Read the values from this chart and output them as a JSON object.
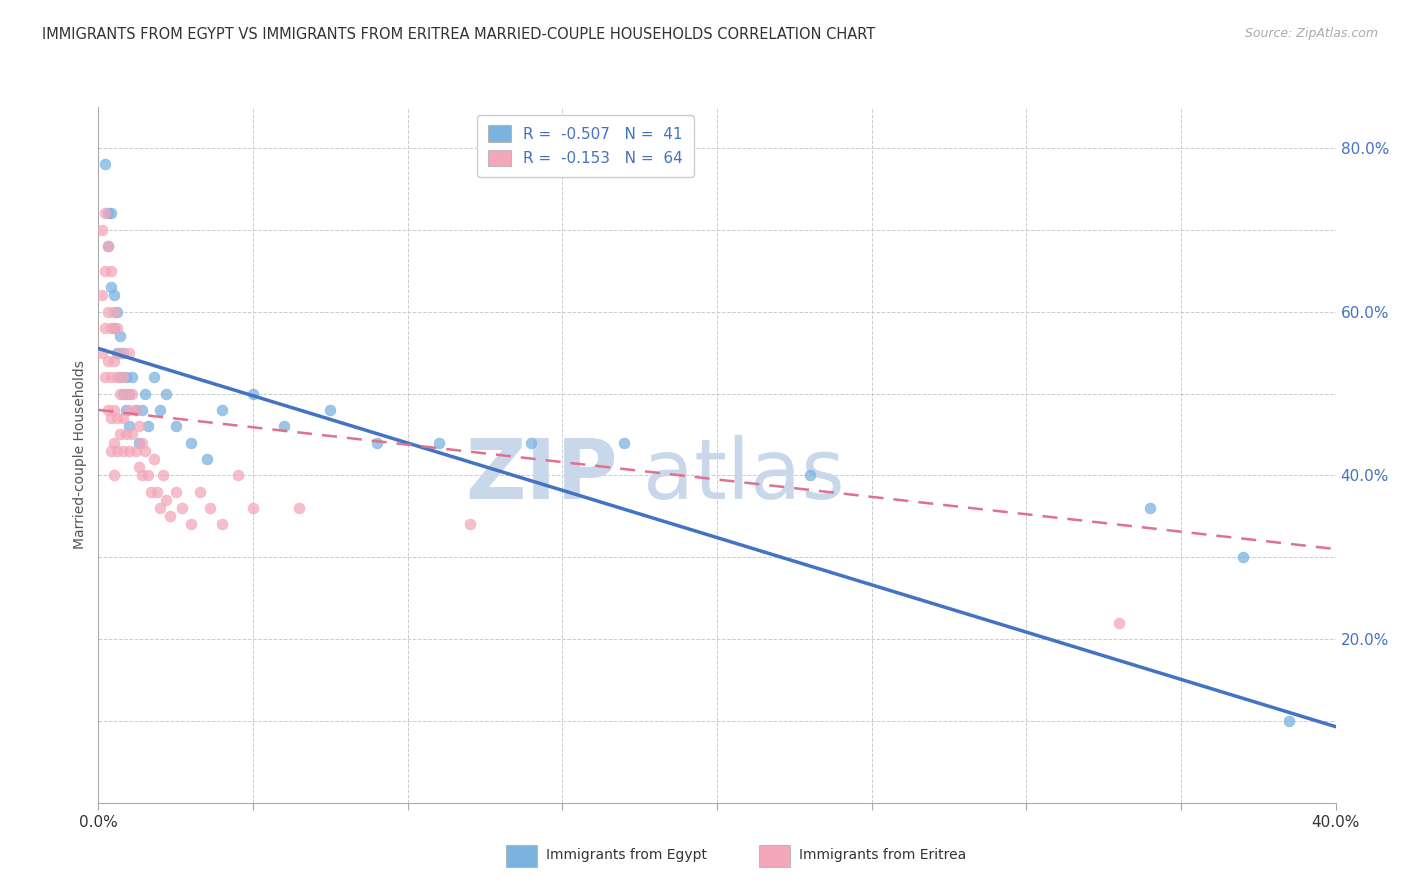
{
  "title": "IMMIGRANTS FROM EGYPT VS IMMIGRANTS FROM ERITREA MARRIED-COUPLE HOUSEHOLDS CORRELATION CHART",
  "source": "Source: ZipAtlas.com",
  "ylabel": "Married-couple Households",
  "xlim": [
    0.0,
    0.4
  ],
  "ylim": [
    0.0,
    0.85
  ],
  "xticks": [
    0.0,
    0.05,
    0.1,
    0.15,
    0.2,
    0.25,
    0.3,
    0.35,
    0.4
  ],
  "xticklabels": [
    "0.0%",
    "",
    "",
    "",
    "",
    "",
    "",
    "",
    "40.0%"
  ],
  "yticks": [
    0.0,
    0.1,
    0.2,
    0.3,
    0.4,
    0.5,
    0.6,
    0.7,
    0.8
  ],
  "yticklabels": [
    "",
    "",
    "20.0%",
    "",
    "40.0%",
    "",
    "60.0%",
    "",
    "80.0%"
  ],
  "egypt_color": "#7ab3e0",
  "eritrea_color": "#f4a7b9",
  "egypt_label": "Immigrants from Egypt",
  "eritrea_label": "Immigrants from Eritrea",
  "egypt_R": -0.507,
  "egypt_N": 41,
  "eritrea_R": -0.153,
  "eritrea_N": 64,
  "trend_line_color_egypt": "#4472c4",
  "trend_line_color_eritrea": "#e07090",
  "egypt_trend_x0": 0.0,
  "egypt_trend_y0": 0.555,
  "egypt_trend_x1": 0.4,
  "egypt_trend_y1": 0.093,
  "eritrea_trend_x0": 0.0,
  "eritrea_trend_y0": 0.48,
  "eritrea_trend_x1": 0.4,
  "eritrea_trend_y1": 0.31,
  "watermark": "ZIPatlas",
  "watermark_color": "#c8d8ea",
  "egypt_x": [
    0.002,
    0.003,
    0.003,
    0.004,
    0.004,
    0.005,
    0.005,
    0.006,
    0.006,
    0.007,
    0.007,
    0.008,
    0.008,
    0.009,
    0.009,
    0.01,
    0.01,
    0.011,
    0.012,
    0.013,
    0.014,
    0.015,
    0.016,
    0.018,
    0.02,
    0.022,
    0.025,
    0.03,
    0.035,
    0.04,
    0.05,
    0.06,
    0.075,
    0.09,
    0.11,
    0.14,
    0.17,
    0.23,
    0.34,
    0.37,
    0.385
  ],
  "egypt_y": [
    0.78,
    0.72,
    0.68,
    0.63,
    0.72,
    0.58,
    0.62,
    0.55,
    0.6,
    0.52,
    0.57,
    0.5,
    0.55,
    0.48,
    0.52,
    0.5,
    0.46,
    0.52,
    0.48,
    0.44,
    0.48,
    0.5,
    0.46,
    0.52,
    0.48,
    0.5,
    0.46,
    0.44,
    0.42,
    0.48,
    0.5,
    0.46,
    0.48,
    0.44,
    0.44,
    0.44,
    0.44,
    0.4,
    0.36,
    0.3,
    0.1
  ],
  "eritrea_x": [
    0.001,
    0.001,
    0.001,
    0.002,
    0.002,
    0.002,
    0.002,
    0.003,
    0.003,
    0.003,
    0.003,
    0.004,
    0.004,
    0.004,
    0.004,
    0.004,
    0.005,
    0.005,
    0.005,
    0.005,
    0.005,
    0.006,
    0.006,
    0.006,
    0.006,
    0.007,
    0.007,
    0.007,
    0.008,
    0.008,
    0.008,
    0.009,
    0.009,
    0.01,
    0.01,
    0.01,
    0.011,
    0.011,
    0.012,
    0.012,
    0.013,
    0.013,
    0.014,
    0.014,
    0.015,
    0.016,
    0.017,
    0.018,
    0.019,
    0.02,
    0.021,
    0.022,
    0.023,
    0.025,
    0.027,
    0.03,
    0.033,
    0.036,
    0.04,
    0.045,
    0.05,
    0.065,
    0.12,
    0.33
  ],
  "eritrea_y": [
    0.7,
    0.62,
    0.55,
    0.72,
    0.65,
    0.58,
    0.52,
    0.68,
    0.6,
    0.54,
    0.48,
    0.65,
    0.58,
    0.52,
    0.47,
    0.43,
    0.6,
    0.54,
    0.48,
    0.44,
    0.4,
    0.58,
    0.52,
    0.47,
    0.43,
    0.55,
    0.5,
    0.45,
    0.52,
    0.47,
    0.43,
    0.5,
    0.45,
    0.55,
    0.48,
    0.43,
    0.5,
    0.45,
    0.48,
    0.43,
    0.46,
    0.41,
    0.44,
    0.4,
    0.43,
    0.4,
    0.38,
    0.42,
    0.38,
    0.36,
    0.4,
    0.37,
    0.35,
    0.38,
    0.36,
    0.34,
    0.38,
    0.36,
    0.34,
    0.4,
    0.36,
    0.36,
    0.34,
    0.22
  ],
  "background_color": "#ffffff",
  "grid_color": "#cccccc"
}
